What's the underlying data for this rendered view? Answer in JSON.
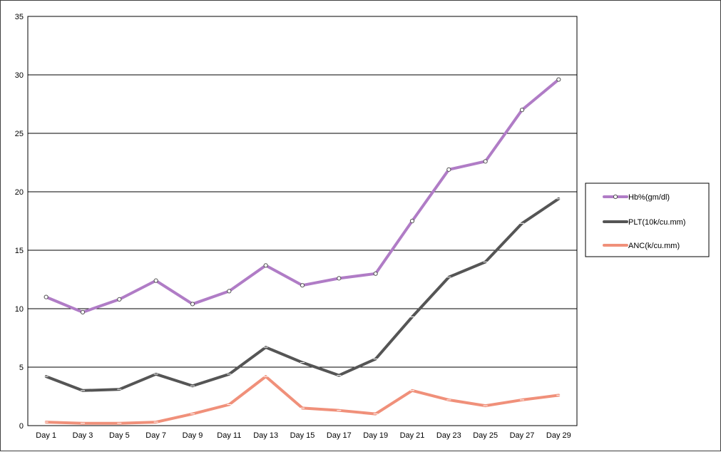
{
  "chart_data": {
    "type": "line",
    "title": "",
    "xlabel": "",
    "ylabel": "",
    "ylim": [
      0,
      35
    ],
    "yticks": [
      0,
      5,
      10,
      15,
      20,
      25,
      30,
      35
    ],
    "grid": "horizontal",
    "legend_position": "right",
    "categories": [
      "Day 1",
      "Day 3",
      "Day 5",
      "Day 7",
      "Day 9",
      "Day 11",
      "Day 13",
      "Day 15",
      "Day 17",
      "Day 19",
      "Day 21",
      "Day 23",
      "Day 25",
      "Day 27",
      "Day 29"
    ],
    "series": [
      {
        "name": "Hb%(gm/dl)",
        "color": "#b07cc6",
        "marker": "circle",
        "values": [
          11.0,
          9.7,
          10.8,
          12.4,
          10.4,
          11.5,
          13.7,
          12.0,
          12.6,
          13.0,
          17.5,
          21.9,
          22.6,
          27.0,
          29.6
        ]
      },
      {
        "name": "PLT(10k/cu.mm)",
        "color": "#555555",
        "marker": "dash",
        "values": [
          4.2,
          3.0,
          3.1,
          4.4,
          3.4,
          4.4,
          6.7,
          5.4,
          4.3,
          5.7,
          9.3,
          12.7,
          14.0,
          17.3,
          19.4
        ]
      },
      {
        "name": "ANC(k/cu.mm)",
        "color": "#f0907a",
        "marker": "dash",
        "values": [
          0.3,
          0.2,
          0.2,
          0.3,
          1.0,
          1.8,
          4.2,
          1.5,
          1.3,
          1.0,
          3.0,
          2.2,
          1.7,
          2.2,
          2.6
        ]
      }
    ]
  }
}
